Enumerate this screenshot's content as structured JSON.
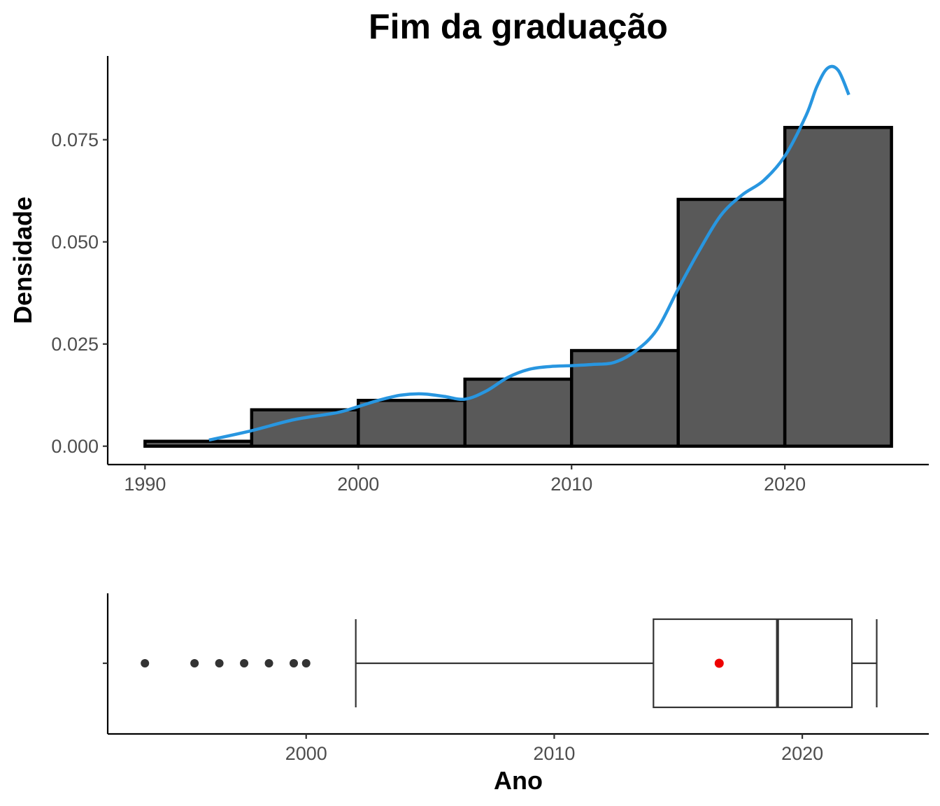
{
  "chart_data": [
    {
      "type": "histogram",
      "title": "Fim da graduação",
      "xlabel": "",
      "ylabel": "Densidade",
      "xlim": [
        1988.25,
        2026.75
      ],
      "ylim": [
        -0.0045,
        0.0955
      ],
      "x_ticks": [
        "1990",
        "2000",
        "2010",
        "2020"
      ],
      "y_ticks": [
        "0.000",
        "0.025",
        "0.050",
        "0.075"
      ],
      "bins": [
        {
          "start": 1990,
          "end": 1995,
          "density": 0.0012
        },
        {
          "start": 1995,
          "end": 2000,
          "density": 0.0089
        },
        {
          "start": 2000,
          "end": 2005,
          "density": 0.0112
        },
        {
          "start": 2005,
          "end": 2010,
          "density": 0.0164
        },
        {
          "start": 2010,
          "end": 2015,
          "density": 0.0234
        },
        {
          "start": 2015,
          "end": 2020,
          "density": 0.0604
        },
        {
          "start": 2020,
          "end": 2025,
          "density": 0.078
        }
      ],
      "bar_fill": "#595959",
      "bar_stroke": "#000000",
      "density_curve": {
        "color": "#2896e0",
        "x": [
          1993,
          1995,
          1997,
          1999,
          2000,
          2001,
          2002,
          2003,
          2004,
          2005,
          2006,
          2007,
          2008,
          2009,
          2010,
          2011,
          2012,
          2013,
          2014,
          2015,
          2016,
          2017,
          2018,
          2019,
          2020,
          2021,
          2021.5,
          2022,
          2022.5,
          2023
        ],
        "y": [
          0.0015,
          0.0038,
          0.0065,
          0.0082,
          0.0097,
          0.0113,
          0.0125,
          0.0128,
          0.0122,
          0.0115,
          0.0135,
          0.0168,
          0.0188,
          0.0195,
          0.0197,
          0.02,
          0.0205,
          0.0233,
          0.0285,
          0.0385,
          0.048,
          0.0565,
          0.0615,
          0.065,
          0.071,
          0.081,
          0.088,
          0.0925,
          0.092,
          0.086
        ]
      }
    },
    {
      "type": "boxplot",
      "xlabel": "Ano",
      "xlim": [
        1992,
        2025.1
      ],
      "x_ticks": [
        "2000",
        "2010",
        "2020"
      ],
      "whisker_low": 2002,
      "q1": 2014,
      "median": 2019,
      "q3": 2022,
      "whisker_high": 2023,
      "mean": 2016.65,
      "mean_color": "#ee0000",
      "outliers": [
        1993.5,
        1995.5,
        1996.5,
        1997.5,
        1998.5,
        1999.5,
        2000
      ]
    }
  ]
}
